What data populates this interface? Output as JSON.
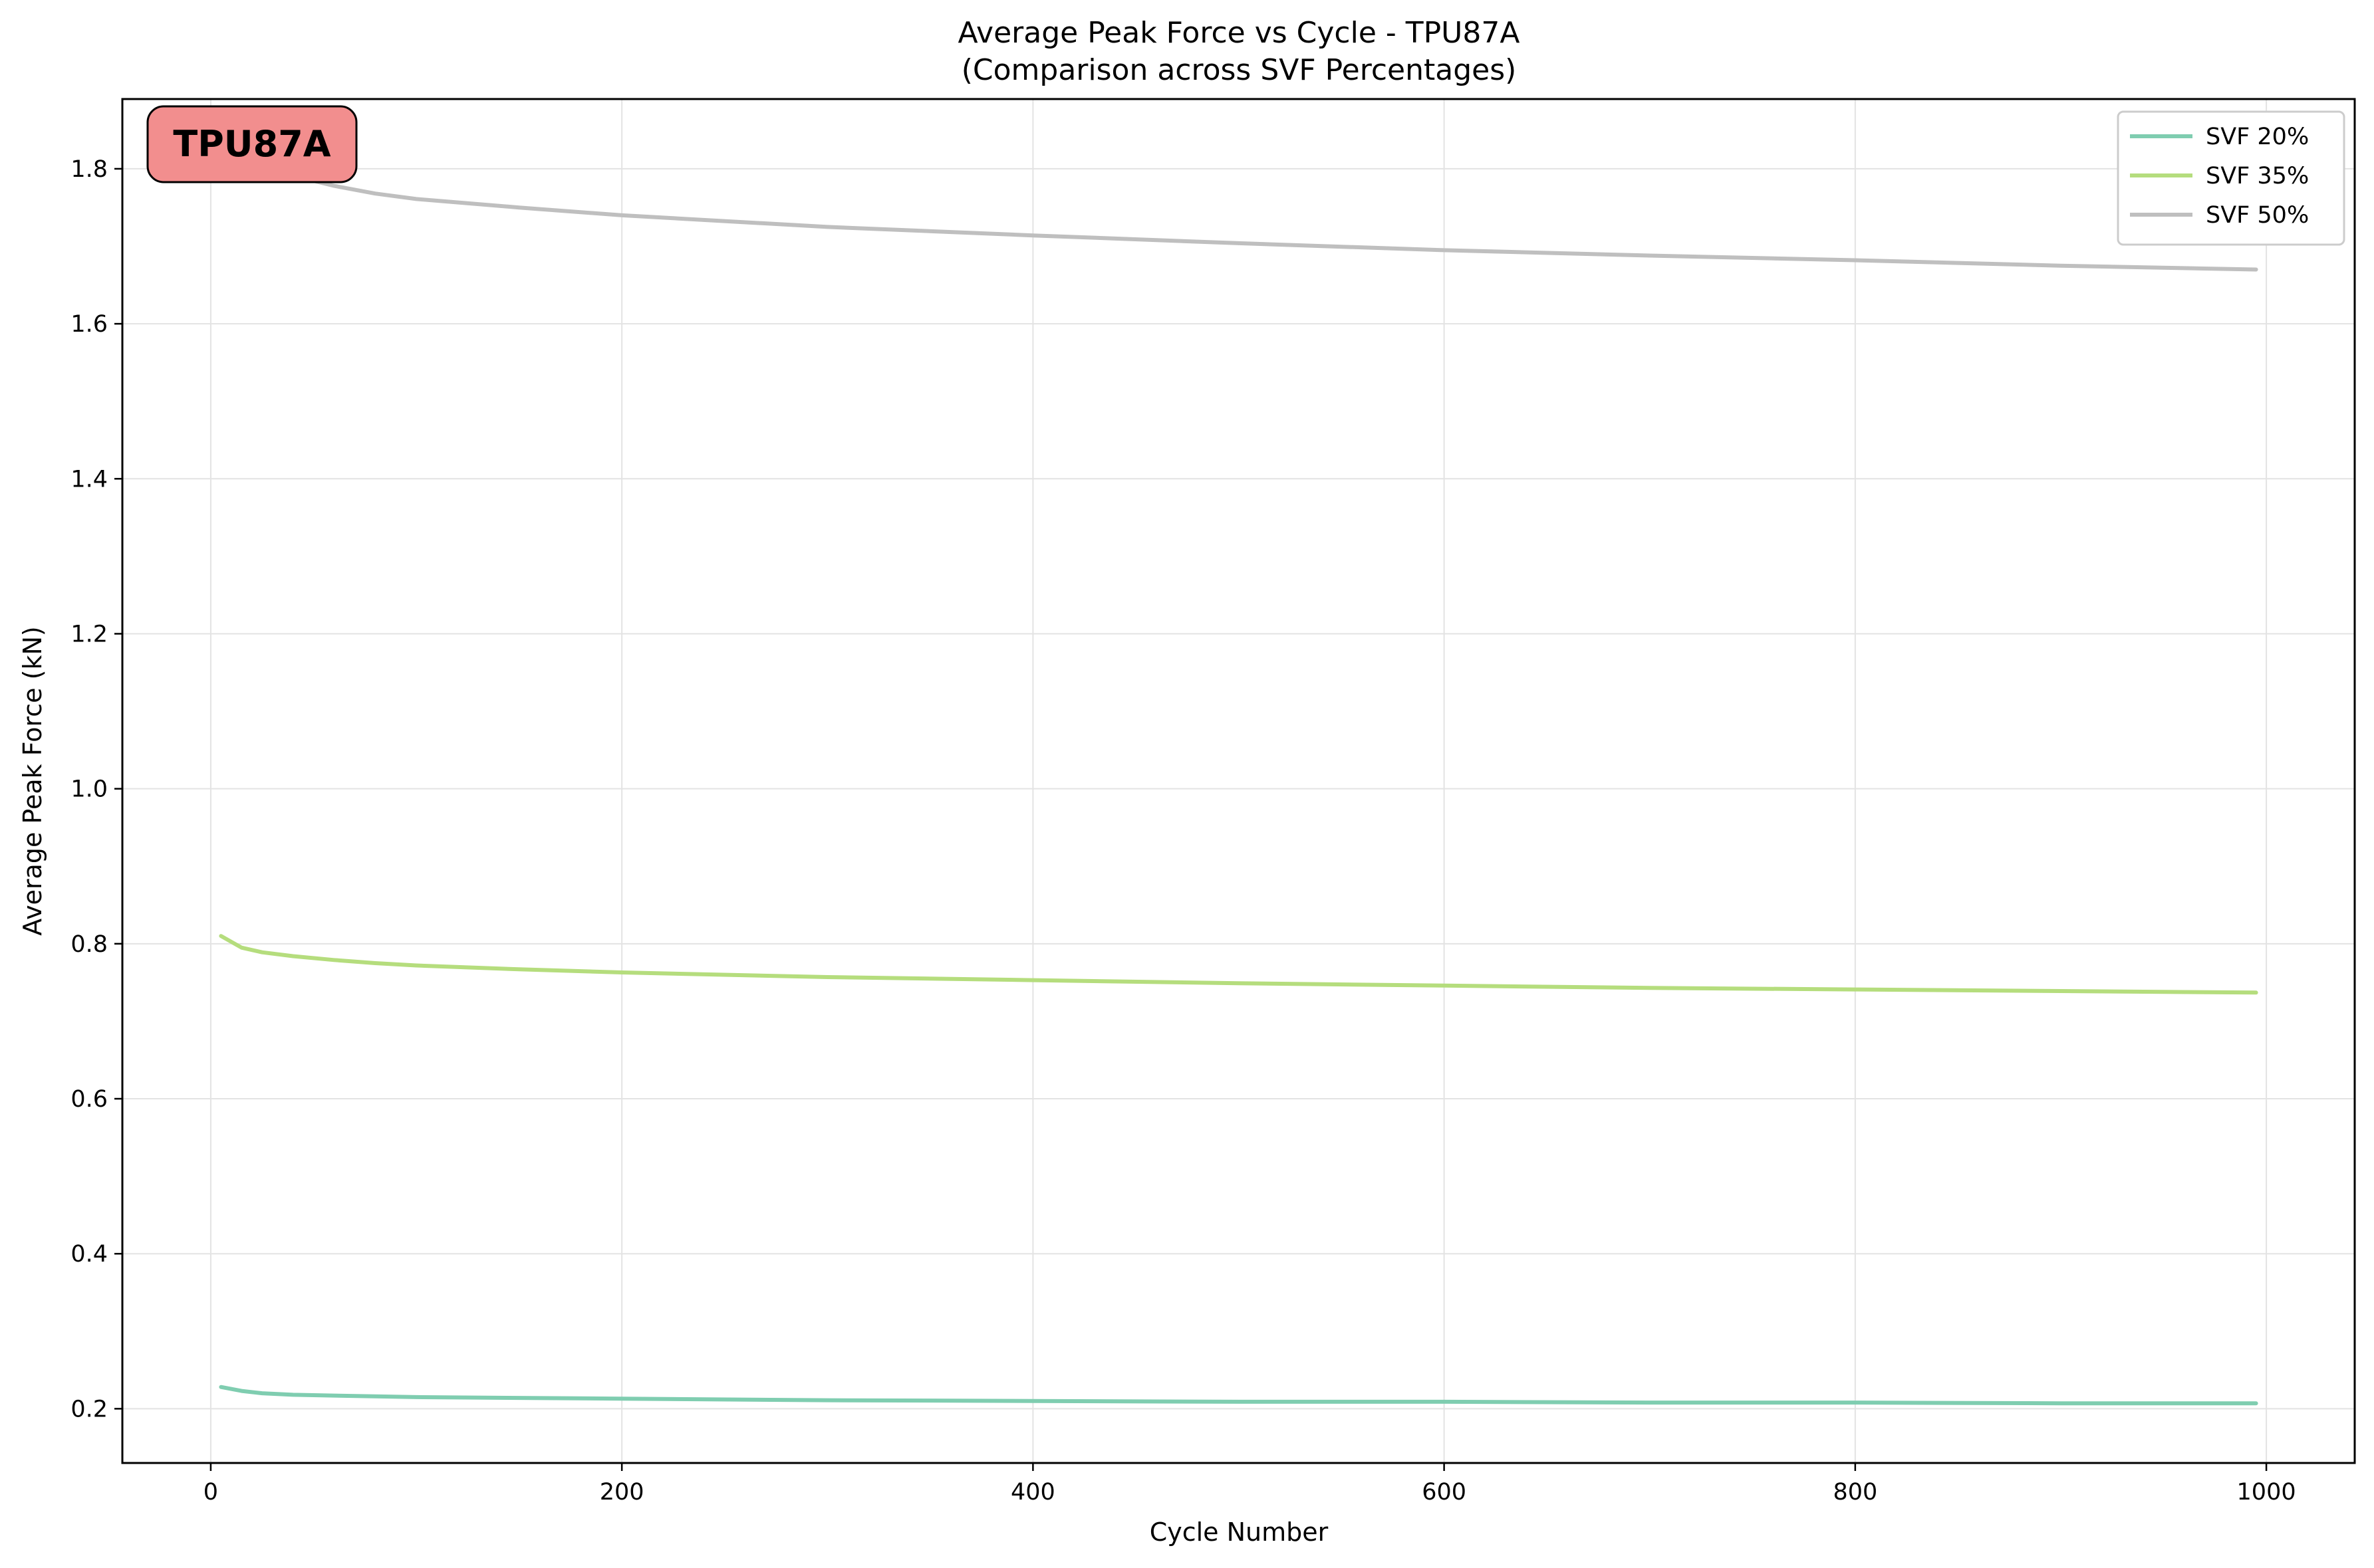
{
  "chart_data": {
    "type": "line",
    "title": "Average Peak Force vs Cycle - TPU87A",
    "subtitle": "(Comparison across SVF Percentages)",
    "xlabel": "Cycle Number",
    "ylabel": "Average Peak Force (kN)",
    "xlim": [
      -43,
      1043
    ],
    "ylim": [
      0.13,
      1.89
    ],
    "xticks": [
      0,
      200,
      400,
      600,
      800,
      1000
    ],
    "yticks": [
      0.2,
      0.4,
      0.6,
      0.8,
      1.0,
      1.2,
      1.4,
      1.6,
      1.8
    ],
    "xtick_labels": [
      "0",
      "200",
      "400",
      "600",
      "800",
      "1000"
    ],
    "ytick_labels": [
      "0.2",
      "0.4",
      "0.6",
      "0.8",
      "1.0",
      "1.2",
      "1.4",
      "1.6",
      "1.8"
    ],
    "grid": true,
    "legend_position": "top-right",
    "badge": {
      "text": "TPU87A",
      "color": "#f28e8e"
    },
    "series": [
      {
        "name": "SVF 20%",
        "color": "#7fcdb0",
        "x": [
          5,
          15,
          25,
          40,
          60,
          80,
          100,
          150,
          200,
          300,
          400,
          500,
          600,
          700,
          800,
          900,
          995
        ],
        "y": [
          0.228,
          0.223,
          0.22,
          0.218,
          0.217,
          0.216,
          0.215,
          0.214,
          0.213,
          0.211,
          0.21,
          0.209,
          0.209,
          0.208,
          0.208,
          0.207,
          0.207
        ]
      },
      {
        "name": "SVF 35%",
        "color": "#b5dd7d",
        "x": [
          5,
          15,
          25,
          40,
          60,
          80,
          100,
          150,
          200,
          300,
          400,
          500,
          600,
          700,
          800,
          900,
          995
        ],
        "y": [
          0.81,
          0.795,
          0.789,
          0.784,
          0.779,
          0.775,
          0.772,
          0.767,
          0.763,
          0.757,
          0.753,
          0.749,
          0.746,
          0.743,
          0.741,
          0.739,
          0.737
        ]
      },
      {
        "name": "SVF 50%",
        "color": "#bfbfbf",
        "x": [
          5,
          15,
          25,
          40,
          60,
          80,
          100,
          150,
          200,
          300,
          400,
          500,
          600,
          700,
          800,
          900,
          995
        ],
        "y": [
          1.835,
          1.815,
          1.803,
          1.791,
          1.778,
          1.768,
          1.761,
          1.75,
          1.74,
          1.725,
          1.714,
          1.704,
          1.695,
          1.688,
          1.682,
          1.675,
          1.67
        ]
      }
    ]
  }
}
